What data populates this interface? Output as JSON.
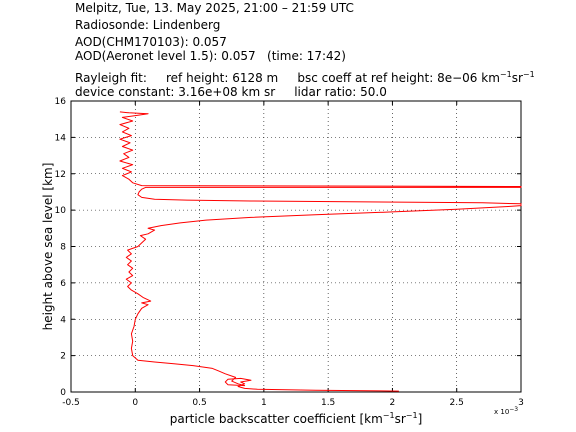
{
  "header": {
    "line1": "Melpitz, Tue, 13. May 2025, 21:00 – 21:59 UTC",
    "line2": "Radiosonde: Lindenberg",
    "line3": "AOD(CHM170103): 0.057",
    "line4": "AOD(Aeronet level 1.5): 0.057   (time: 17:42)",
    "line5_a": "Rayleigh fit:     ref height: 6128 m",
    "line5_b": "bsc coeff at ref height: 8e−06 km",
    "line5_sup1": "−1",
    "line5_mid": "sr",
    "line5_sup2": "−1",
    "line6": "device constant: 3.16e+08 km sr     lidar ratio: 50.0"
  },
  "chart_data": {
    "type": "line",
    "xlabel_main": "particle backscatter coefficient [km",
    "xlabel_sup1": "−1",
    "xlabel_mid": "sr",
    "xlabel_sup2": "−1",
    "xlabel_end": "]",
    "ylabel": "height above sea level [km]",
    "x_multiplier": "x 10",
    "x_multiplier_exp": "−3",
    "xlim": [
      -0.5,
      3
    ],
    "ylim": [
      0,
      16
    ],
    "xticks": [
      "-0.5",
      "0",
      "0.5",
      "1",
      "1.5",
      "2",
      "2.5",
      "3"
    ],
    "yticks": [
      "0",
      "2",
      "4",
      "6",
      "8",
      "10",
      "12",
      "14",
      "16"
    ],
    "grid": true,
    "series": [
      {
        "color": "#ff0000",
        "points": [
          [
            2.05,
            0.05
          ],
          [
            1.4,
            0.1
          ],
          [
            0.95,
            0.15
          ],
          [
            0.85,
            0.2
          ],
          [
            0.8,
            0.3
          ],
          [
            0.85,
            0.45
          ],
          [
            0.82,
            0.55
          ],
          [
            0.9,
            0.65
          ],
          [
            0.82,
            0.75
          ],
          [
            0.72,
            0.7
          ],
          [
            0.7,
            0.55
          ],
          [
            0.72,
            0.4
          ],
          [
            0.85,
            0.35
          ],
          [
            0.8,
            0.45
          ],
          [
            0.75,
            0.6
          ],
          [
            0.78,
            0.8
          ],
          [
            0.7,
            1.0
          ],
          [
            0.65,
            1.15
          ],
          [
            0.6,
            1.3
          ],
          [
            0.45,
            1.45
          ],
          [
            0.3,
            1.55
          ],
          [
            0.15,
            1.65
          ],
          [
            0.02,
            1.75
          ],
          [
            -0.02,
            2.0
          ],
          [
            -0.03,
            2.4
          ],
          [
            -0.02,
            2.8
          ],
          [
            -0.03,
            3.2
          ],
          [
            -0.01,
            3.6
          ],
          [
            0.0,
            4.0
          ],
          [
            0.02,
            4.3
          ],
          [
            0.05,
            4.6
          ],
          [
            0.1,
            4.8
          ],
          [
            0.05,
            4.9
          ],
          [
            0.12,
            5.0
          ],
          [
            0.06,
            5.2
          ],
          [
            0.02,
            5.4
          ],
          [
            -0.03,
            5.6
          ],
          [
            -0.06,
            5.8
          ],
          [
            -0.03,
            6.0
          ],
          [
            -0.07,
            6.2
          ],
          [
            -0.02,
            6.4
          ],
          [
            -0.05,
            6.6
          ],
          [
            -0.02,
            6.8
          ],
          [
            -0.06,
            7.0
          ],
          [
            -0.03,
            7.2
          ],
          [
            -0.07,
            7.4
          ],
          [
            -0.03,
            7.6
          ],
          [
            -0.06,
            7.8
          ],
          [
            0.02,
            8.0
          ],
          [
            0.05,
            8.2
          ],
          [
            0.08,
            8.4
          ],
          [
            0.04,
            8.6
          ],
          [
            0.1,
            8.7
          ],
          [
            0.15,
            8.9
          ],
          [
            0.1,
            9.0
          ],
          [
            0.2,
            9.15
          ],
          [
            0.35,
            9.3
          ],
          [
            0.55,
            9.45
          ],
          [
            0.9,
            9.6
          ],
          [
            1.4,
            9.75
          ],
          [
            2.0,
            9.9
          ],
          [
            2.5,
            10.05
          ],
          [
            2.9,
            10.2
          ],
          [
            3.0,
            10.25
          ],
          [
            3.0,
            10.35
          ],
          [
            2.7,
            10.4
          ],
          [
            1.8,
            10.45
          ],
          [
            0.9,
            10.5
          ],
          [
            0.4,
            10.55
          ],
          [
            0.15,
            10.6
          ],
          [
            0.05,
            10.7
          ],
          [
            0.02,
            10.85
          ],
          [
            0.03,
            11.0
          ],
          [
            0.05,
            11.15
          ],
          [
            0.08,
            11.25
          ],
          [
            3.0,
            11.25
          ],
          [
            3.0,
            11.3
          ],
          [
            0.05,
            11.35
          ],
          [
            -0.02,
            11.5
          ],
          [
            -0.05,
            11.7
          ],
          [
            -0.1,
            11.9
          ],
          [
            -0.03,
            12.1
          ],
          [
            -0.1,
            12.3
          ],
          [
            -0.02,
            12.5
          ],
          [
            -0.12,
            12.7
          ],
          [
            -0.05,
            12.9
          ],
          [
            -0.09,
            13.1
          ],
          [
            -0.02,
            13.3
          ],
          [
            -0.1,
            13.5
          ],
          [
            -0.04,
            13.7
          ],
          [
            -0.12,
            13.9
          ],
          [
            -0.03,
            14.1
          ],
          [
            -0.1,
            14.3
          ],
          [
            -0.05,
            14.5
          ],
          [
            -0.12,
            14.7
          ],
          [
            -0.02,
            14.9
          ],
          [
            -0.1,
            15.1
          ],
          [
            0.0,
            15.2
          ],
          [
            0.1,
            15.3
          ],
          [
            -0.05,
            15.35
          ],
          [
            -0.12,
            15.4
          ]
        ]
      }
    ]
  }
}
